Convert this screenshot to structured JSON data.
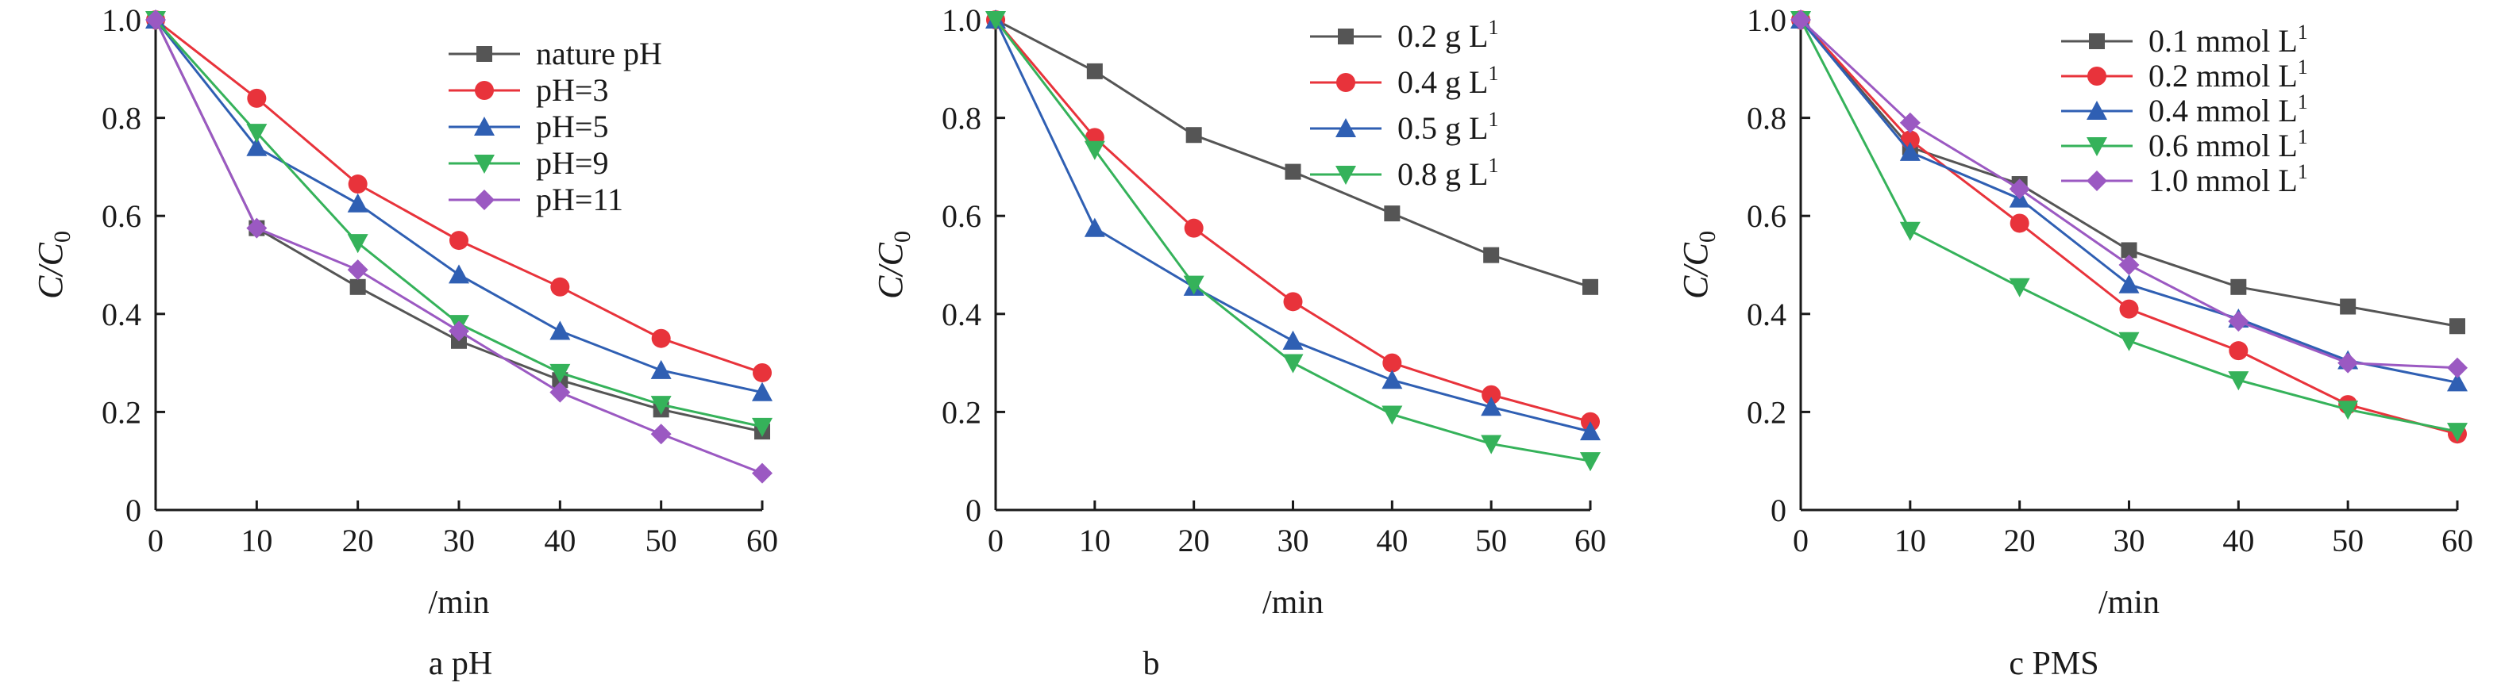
{
  "chart_data": [
    {
      "type": "line",
      "caption": "a pH",
      "ylabel": "C/C0",
      "xlabel": "/min",
      "x": [
        0,
        10,
        20,
        30,
        40,
        50,
        60
      ],
      "xlim": [
        0,
        60
      ],
      "ylim": [
        0,
        1.0
      ],
      "xticks": [
        "0",
        "10",
        "20",
        "30",
        "40",
        "50",
        "60"
      ],
      "yticks": [
        "0",
        "0.2",
        "0.4",
        "0.6",
        "0.8",
        "1.0"
      ],
      "grid": false,
      "legend_position": "top-right",
      "series": [
        {
          "name": "nature pH",
          "color": "#555555",
          "marker": "square",
          "values": [
            1.0,
            0.575,
            0.455,
            0.345,
            0.265,
            0.205,
            0.16
          ]
        },
        {
          "name": "pH=3",
          "color": "#e8333b",
          "marker": "circle",
          "values": [
            1.0,
            0.84,
            0.665,
            0.55,
            0.455,
            0.35,
            0.28
          ]
        },
        {
          "name": "pH=5",
          "color": "#2f5fb3",
          "marker": "triangle-up",
          "values": [
            1.0,
            0.74,
            0.625,
            0.48,
            0.365,
            0.285,
            0.24
          ]
        },
        {
          "name": "pH=9",
          "color": "#35b25a",
          "marker": "triangle-down",
          "values": [
            1.0,
            0.77,
            0.545,
            0.38,
            0.28,
            0.215,
            0.17
          ]
        },
        {
          "name": "pH=11",
          "color": "#9b59c2",
          "marker": "diamond",
          "values": [
            1.0,
            0.575,
            0.49,
            0.365,
            0.24,
            0.155,
            0.075
          ]
        }
      ]
    },
    {
      "type": "line",
      "caption": "b",
      "ylabel": "C/C0",
      "xlabel": "/min",
      "x": [
        0,
        10,
        20,
        30,
        40,
        50,
        60
      ],
      "xlim": [
        0,
        60
      ],
      "ylim": [
        0,
        1.0
      ],
      "xticks": [
        "0",
        "10",
        "20",
        "30",
        "40",
        "50",
        "60"
      ],
      "yticks": [
        "0",
        "0.2",
        "0.4",
        "0.6",
        "0.8",
        "1.0"
      ],
      "grid": false,
      "legend_position": "top-right",
      "series": [
        {
          "name": "0.2 g   L",
          "sup": "1",
          "color": "#555555",
          "marker": "square",
          "values": [
            1.0,
            0.895,
            0.765,
            0.69,
            0.605,
            0.52,
            0.455
          ]
        },
        {
          "name": "0.4 g   L",
          "sup": "1",
          "color": "#e8333b",
          "marker": "circle",
          "values": [
            1.0,
            0.76,
            0.575,
            0.425,
            0.3,
            0.235,
            0.18
          ]
        },
        {
          "name": "0.5 g   L",
          "sup": "1",
          "color": "#2f5fb3",
          "marker": "triangle-up",
          "values": [
            1.0,
            0.575,
            0.455,
            0.345,
            0.265,
            0.21,
            0.16
          ]
        },
        {
          "name": "0.8 g   L",
          "sup": "1",
          "color": "#35b25a",
          "marker": "triangle-down",
          "values": [
            1.0,
            0.735,
            0.46,
            0.3,
            0.195,
            0.135,
            0.1
          ]
        }
      ]
    },
    {
      "type": "line",
      "caption": "c PMS",
      "ylabel": "C/C0",
      "xlabel": "/min",
      "x": [
        0,
        10,
        20,
        30,
        40,
        50,
        60
      ],
      "xlim": [
        0,
        60
      ],
      "ylim": [
        0,
        1.0
      ],
      "xticks": [
        "0",
        "10",
        "20",
        "30",
        "40",
        "50",
        "60"
      ],
      "yticks": [
        "0",
        "0.2",
        "0.4",
        "0.6",
        "0.8",
        "1.0"
      ],
      "grid": false,
      "legend_position": "top-right",
      "series": [
        {
          "name": "0.1 mmol   L",
          "sup": "1",
          "color": "#555555",
          "marker": "square",
          "values": [
            1.0,
            0.74,
            0.665,
            0.53,
            0.455,
            0.415,
            0.375
          ]
        },
        {
          "name": "0.2 mmol   L",
          "sup": "1",
          "color": "#e8333b",
          "marker": "circle",
          "values": [
            1.0,
            0.755,
            0.585,
            0.41,
            0.325,
            0.215,
            0.155
          ]
        },
        {
          "name": "0.4 mmol   L",
          "sup": "1",
          "color": "#2f5fb3",
          "marker": "triangle-up",
          "values": [
            1.0,
            0.73,
            0.635,
            0.46,
            0.39,
            0.305,
            0.26
          ]
        },
        {
          "name": "0.6 mmol   L",
          "sup": "1",
          "color": "#35b25a",
          "marker": "triangle-down",
          "values": [
            1.0,
            0.57,
            0.455,
            0.345,
            0.265,
            0.205,
            0.16
          ]
        },
        {
          "name": "1.0 mmol   L",
          "sup": "1",
          "color": "#9b59c2",
          "marker": "diamond",
          "values": [
            1.0,
            0.79,
            0.655,
            0.5,
            0.385,
            0.3,
            0.29
          ]
        }
      ]
    }
  ]
}
